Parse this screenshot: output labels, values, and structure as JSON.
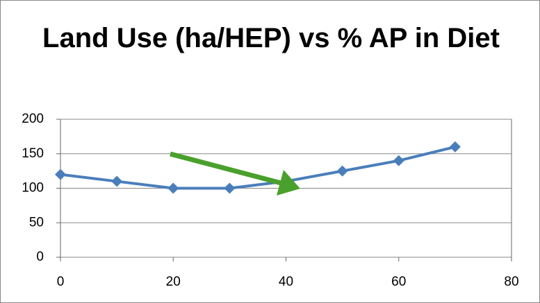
{
  "chart_data": {
    "type": "line",
    "title": "Land Use (ha/HEP) vs % AP in Diet",
    "x": [
      0,
      10,
      20,
      30,
      40,
      50,
      60,
      70
    ],
    "series": [
      {
        "color": "#4a7ebb",
        "values": [
          120,
          110,
          100,
          100,
          110,
          125,
          140,
          160
        ]
      }
    ],
    "xlim": [
      0,
      80
    ],
    "xticks": [
      0,
      20,
      40,
      60,
      80
    ],
    "ylim": [
      0,
      200
    ],
    "yticks": [
      0,
      50,
      100,
      150,
      200
    ],
    "grid": true
  }
}
